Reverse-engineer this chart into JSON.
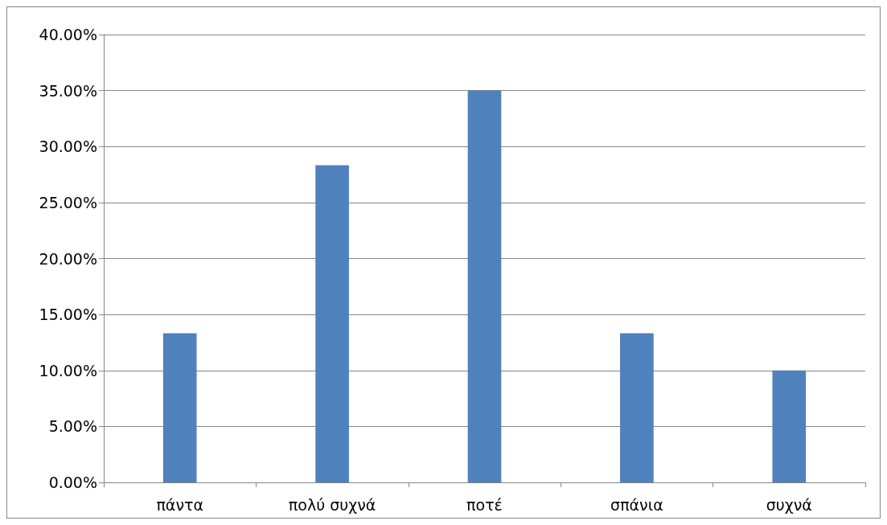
{
  "chart_data": {
    "type": "bar",
    "categories": [
      "πάντα",
      "πολύ συχνά",
      "ποτέ",
      "σπάνια",
      "συχνά"
    ],
    "values": [
      13.33,
      28.33,
      35,
      13.33,
      10
    ],
    "color": "#4f81bd",
    "ylim": [
      0,
      40
    ],
    "yticks": [
      {
        "value": 0,
        "label": "0.00%"
      },
      {
        "value": 5,
        "label": "5.00%"
      },
      {
        "value": 10,
        "label": "10.00%"
      },
      {
        "value": 15,
        "label": "15.00%"
      },
      {
        "value": 20,
        "label": "20.00%"
      },
      {
        "value": 25,
        "label": "25.00%"
      },
      {
        "value": 30,
        "label": "30.00%"
      },
      {
        "value": 35,
        "label": "35.00%"
      },
      {
        "value": 40,
        "label": "40.00%"
      }
    ],
    "grid": "y"
  }
}
